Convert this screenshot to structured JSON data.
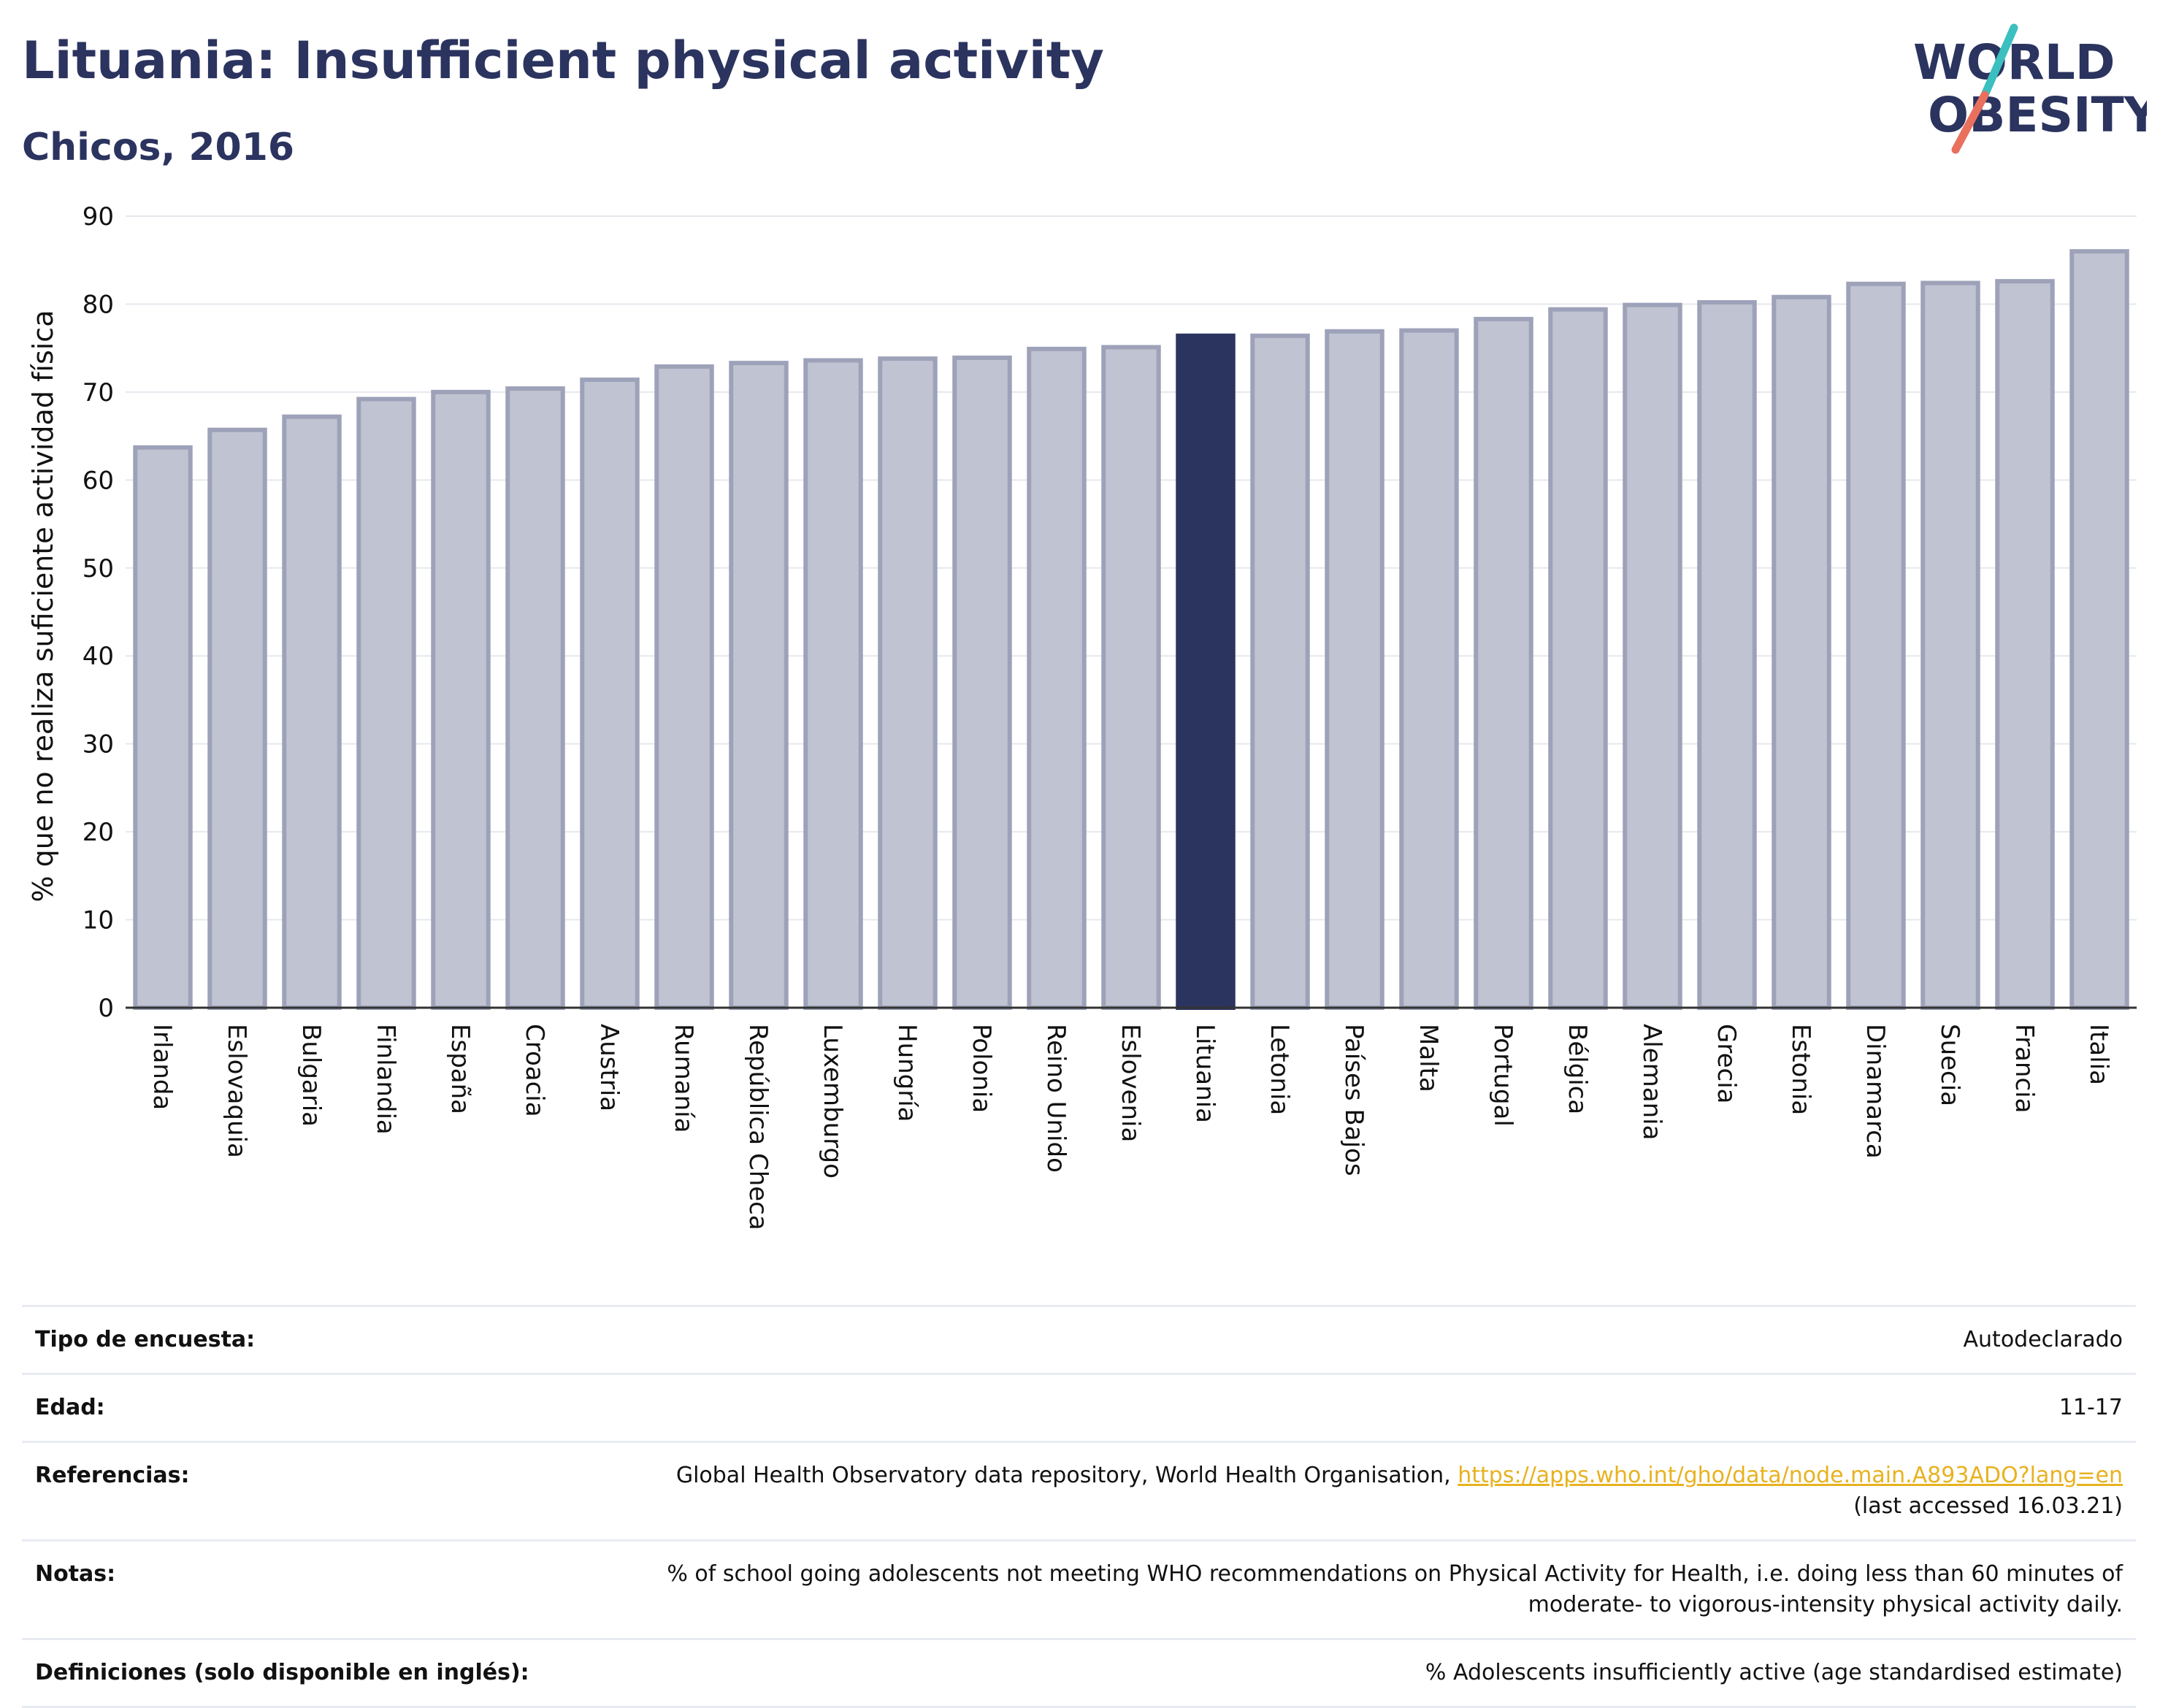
{
  "header": {
    "title": "Lituania: Insufficient physical activity",
    "subtitle": "Chicos, 2016"
  },
  "logo": {
    "line1": "WORLD",
    "line2": "OBESITY",
    "icon": "world-obesity-logo",
    "accent_teal": "#3bbfbf",
    "accent_red": "#e8705d"
  },
  "colors": {
    "bar": "#c0c3d1",
    "bar_border": "#9da2b9",
    "highlight": "#2b335f",
    "grid": "#e6e8ef",
    "axis": "#333333"
  },
  "chart_data": {
    "type": "bar",
    "title": "Lituania: Insufficient physical activity",
    "subtitle": "Chicos, 2016",
    "xlabel": "",
    "ylabel": "% que no realiza suficiente actividad física",
    "ylim": [
      0,
      90
    ],
    "yticks": [
      0,
      10,
      20,
      30,
      40,
      50,
      60,
      70,
      80,
      90
    ],
    "grid": true,
    "highlight": "Lituania",
    "categories": [
      "Irlanda",
      "Eslovaquia",
      "Bulgaria",
      "Finlandia",
      "España",
      "Croacia",
      "Austria",
      "Rumanía",
      "República Checa",
      "Luxemburgo",
      "Hungría",
      "Polonia",
      "Reino Unido",
      "Eslovenia",
      "Lituania",
      "Letonia",
      "Países Bajos",
      "Malta",
      "Portugal",
      "Bélgica",
      "Alemania",
      "Grecia",
      "Estonia",
      "Dinamarca",
      "Suecia",
      "Francia",
      "Italia"
    ],
    "values": [
      63.7,
      65.7,
      67.2,
      69.2,
      70.0,
      70.4,
      71.4,
      72.9,
      73.3,
      73.6,
      73.8,
      73.9,
      74.9,
      75.1,
      76.4,
      76.4,
      76.9,
      77.0,
      78.3,
      79.4,
      79.9,
      80.2,
      80.8,
      82.3,
      82.4,
      82.6,
      86.0
    ]
  },
  "info": {
    "survey_type": {
      "label": "Tipo de encuesta:",
      "value": "Autodeclarado"
    },
    "age": {
      "label": "Edad:",
      "value": "11-17"
    },
    "references": {
      "label": "Referencias:",
      "text": "Global Health Observatory data repository, World Health Organisation,",
      "link": "https://apps.who.int/gho/data/node.main.A893ADO?lang=en",
      "accessed": "(last accessed 16.03.21)"
    },
    "notes": {
      "label": "Notas:",
      "line1": "% of school going adolescents not meeting WHO recommendations on Physical Activity for Health, i.e. doing less than 60 minutes of",
      "line2": "moderate- to vigorous-intensity physical activity daily."
    },
    "definitions": {
      "label": "Definiciones (solo disponible en inglés):",
      "value": "% Adolescents insufficiently active (age standardised estimate)"
    }
  }
}
